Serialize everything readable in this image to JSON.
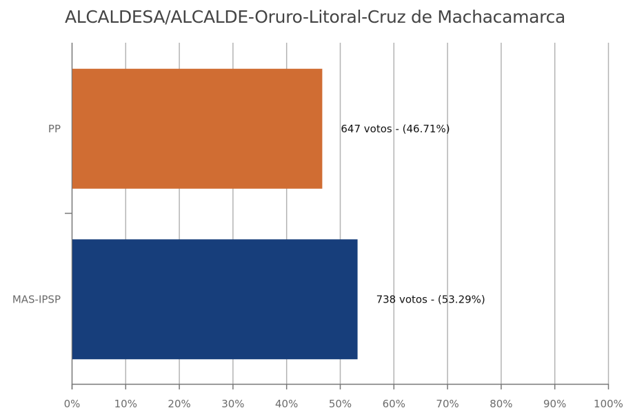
{
  "chart_data": {
    "type": "bar",
    "orientation": "horizontal",
    "title": "ALCALDESA/ALCALDE-Oruro-Litoral-Cruz de Machacamarca",
    "categories": [
      "PP",
      "MAS-IPSP"
    ],
    "values": [
      46.71,
      53.29
    ],
    "votes": [
      647,
      738
    ],
    "data_labels": [
      "647 votos - (46.71%)",
      "738 votos - (53.29%)"
    ],
    "colors": [
      "#d06d33",
      "#173e7b"
    ],
    "xlim": [
      0,
      100
    ],
    "x_ticks": [
      "0%",
      "10%",
      "20%",
      "30%",
      "40%",
      "50%",
      "60%",
      "70%",
      "80%",
      "90%",
      "100%"
    ],
    "grid": true,
    "xlabel": "",
    "ylabel": ""
  }
}
